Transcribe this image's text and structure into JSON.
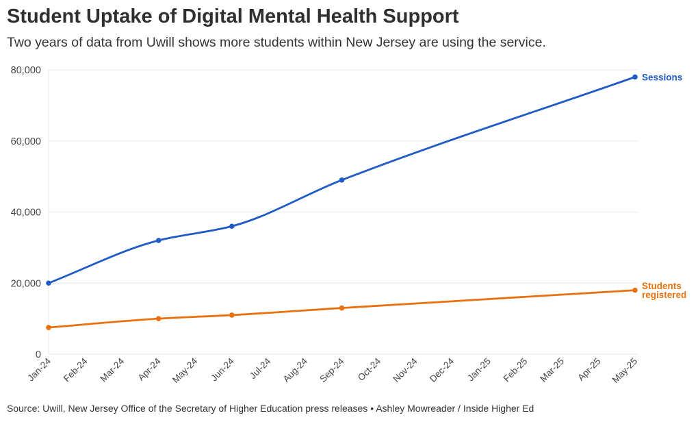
{
  "header": {
    "title": "Student Uptake of Digital Mental Health Support",
    "subtitle": "Two years of data from Uwill shows more students within New Jersey are using the service."
  },
  "footer": {
    "source": "Source: Uwill, New Jersey Office of the Secretary of Higher Education press releases • Ashley Mowreader / Inside Higher Ed"
  },
  "chart_data": {
    "type": "line",
    "title": "Student Uptake of Digital Mental Health Support",
    "subtitle": "Two years of data from Uwill shows more students within New Jersey are using the service.",
    "xlabel": "",
    "ylabel": "",
    "ylim": [
      0,
      80000
    ],
    "yticks": [
      0,
      20000,
      40000,
      60000,
      80000
    ],
    "ytick_labels": [
      "0",
      "20,000",
      "40,000",
      "60,000",
      "80,000"
    ],
    "x_categories": [
      "Jan-24",
      "Feb-24",
      "Mar-24",
      "Apr-24",
      "May-24",
      "Jun-24",
      "Jul-24",
      "Aug-24",
      "Sep-24",
      "Oct-24",
      "Nov-24",
      "Dec-24",
      "Jan-25",
      "Feb-25",
      "Mar-25",
      "Apr-25",
      "May-25"
    ],
    "grid": true,
    "legend": "direct labels at line ends",
    "series": [
      {
        "name": "Sessions",
        "color": "#1f5bc4",
        "points": [
          {
            "x": "Jan-24",
            "y": 20000
          },
          {
            "x": "Apr-24",
            "y": 32000
          },
          {
            "x": "Jun-24",
            "y": 36000
          },
          {
            "x": "Sep-24",
            "y": 49000
          },
          {
            "x": "May-25",
            "y": 78000
          }
        ]
      },
      {
        "name": "Students registered",
        "label_lines": [
          "Students",
          "registered"
        ],
        "color": "#e8700f",
        "points": [
          {
            "x": "Jan-24",
            "y": 7500
          },
          {
            "x": "Apr-24",
            "y": 10000
          },
          {
            "x": "Jun-24",
            "y": 11000
          },
          {
            "x": "Sep-24",
            "y": 13000
          },
          {
            "x": "May-25",
            "y": 18000
          }
        ]
      }
    ]
  }
}
